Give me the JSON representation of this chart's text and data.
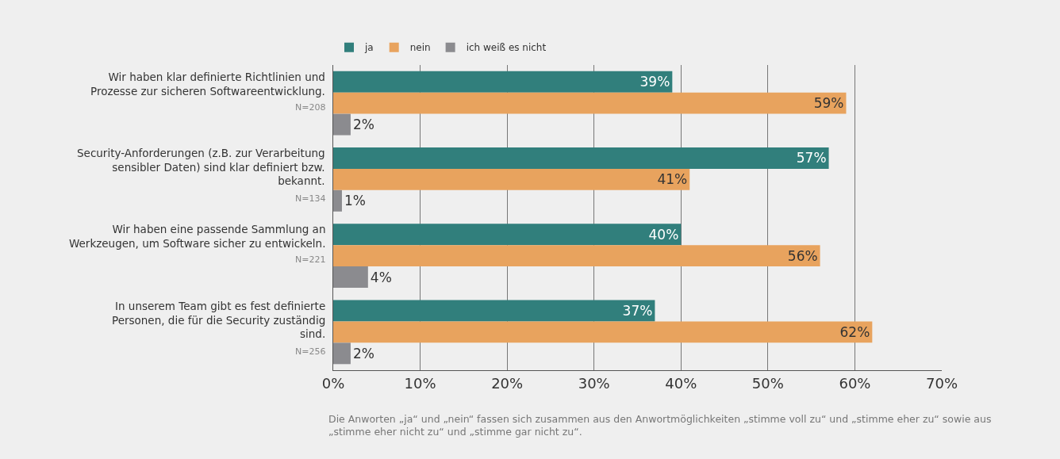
{
  "chart_data": {
    "type": "bar",
    "orientation": "horizontal",
    "categories": [
      "Wir haben klar definierte Richtlinien und Prozesse zur sicheren Softwareentwicklung.",
      "Security-Anforderungen (z.B. zur Verarbeitung sensibler Daten) sind klar definiert bzw. bekannt.",
      "Wir haben eine passende Sammlung an Werkzeugen, um Software sicher zu entwickeln.",
      "In unserem Team gibt es fest definierte Personen, die für die Security zuständig sind."
    ],
    "series": [
      {
        "name": "ja",
        "color": "#317f7c",
        "values": [
          39,
          57,
          40,
          37
        ],
        "value_labels": [
          "39%",
          "57%",
          "40%",
          "37%"
        ]
      },
      {
        "name": "nein",
        "color": "#e8a35e",
        "values": [
          59,
          41,
          56,
          62
        ],
        "value_labels": [
          "59%",
          "41%",
          "56%",
          "62%"
        ]
      },
      {
        "name": "ich weiß es nicht",
        "color": "#8b8b8f",
        "values": [
          2,
          1,
          4,
          2
        ],
        "value_labels": [
          "2%",
          "1%",
          "4%",
          "2%"
        ]
      }
    ],
    "xlim": [
      0,
      70
    ],
    "xticks": [
      {
        "value": 0,
        "label": "0%"
      },
      {
        "value": 10,
        "label": "10%"
      },
      {
        "value": 20,
        "label": "20%"
      },
      {
        "value": 30,
        "label": "30%"
      },
      {
        "value": 40,
        "label": "40%"
      },
      {
        "value": 50,
        "label": "50%"
      },
      {
        "value": 60,
        "label": "60%"
      },
      {
        "value": 70,
        "label": "70%"
      }
    ],
    "grid": "x",
    "legend": "top left",
    "annotations": [
      "N=208",
      "N=134",
      "N=221",
      "N=256",
      "Die Anworten „ja“ und „nein“ fassen sich zusammen aus den Anwortmöglichkeiten „stimme voll zu“ und „stimme eher zu“ sowie aus „stimme eher nicht zu“ und „stimme gar nicht zu“."
    ]
  }
}
